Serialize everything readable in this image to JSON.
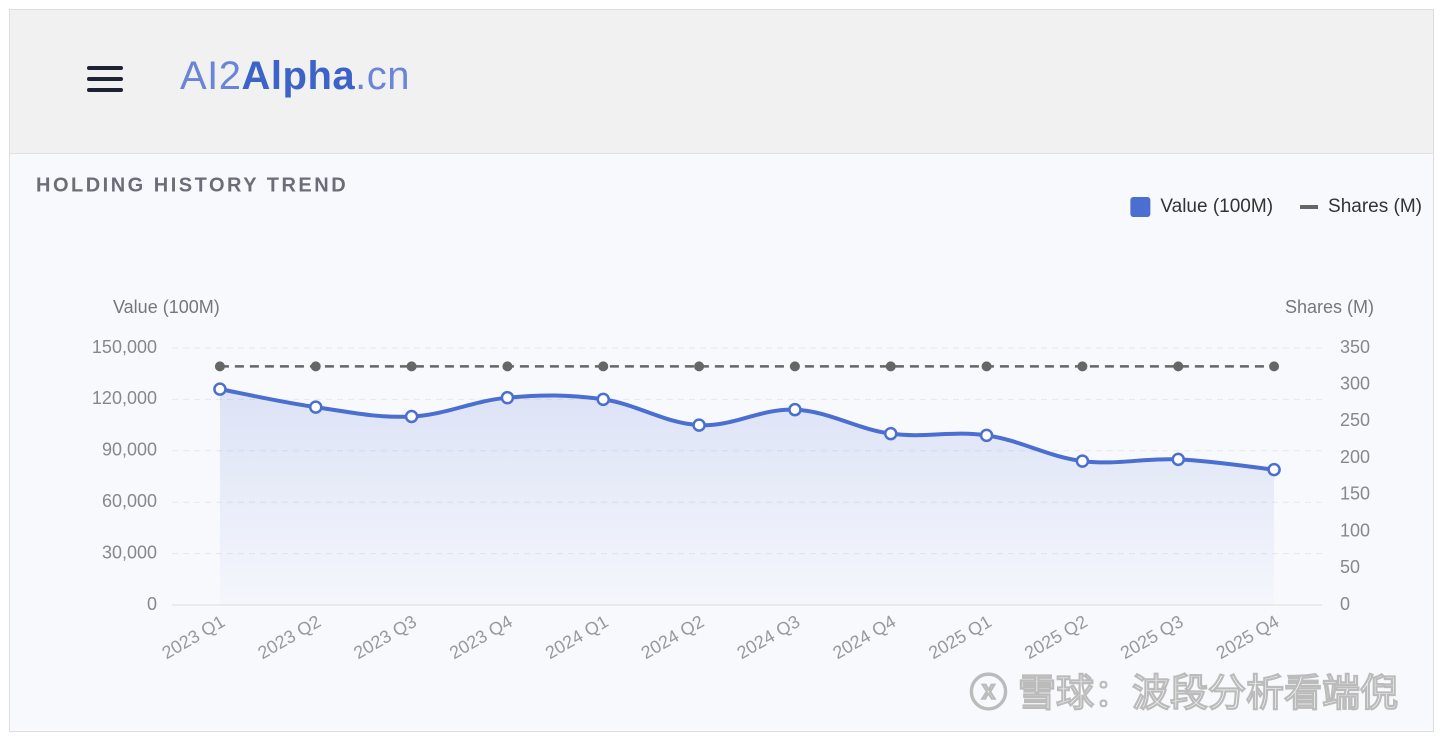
{
  "header": {
    "logo": [
      "AI2",
      "Alpha",
      ".cn"
    ]
  },
  "watermark": "ⓧ 雪球：波段分析看端倪",
  "chart_data": {
    "type": "line",
    "title": "HOLDING HISTORY TREND",
    "y_label": "Value (100M)",
    "y2_label": "Shares (M)",
    "categories": [
      "2023 Q1",
      "2023 Q2",
      "2023 Q3",
      "2023 Q4",
      "2024 Q1",
      "2024 Q2",
      "2024 Q3",
      "2024 Q4",
      "2025 Q1",
      "2025 Q2",
      "2025 Q3",
      "2025 Q4"
    ],
    "series": [
      {
        "name": "Value (100M)",
        "color": "#4a6fd0",
        "values": [
          126000,
          115500,
          110000,
          121000,
          120000,
          105000,
          114000,
          100000,
          99000,
          84000,
          85000,
          79000
        ]
      },
      {
        "name": "Shares (M)",
        "color": "#666666",
        "axis": "y2",
        "values": [
          325,
          325,
          325,
          325,
          325,
          325,
          325,
          325,
          325,
          325,
          325,
          325
        ]
      }
    ],
    "ylim": [
      0,
      150000
    ],
    "yticks": [
      0,
      {
        "value": 30000,
        "label": "30,000"
      },
      {
        "value": 60000,
        "label": "60,000"
      },
      {
        "value": 90000,
        "label": "90,000"
      },
      {
        "value": 120000,
        "label": "120,000"
      },
      {
        "value": 150000,
        "label": "150,000"
      }
    ],
    "y2lim": [
      0,
      350
    ],
    "y2ticks": [
      0,
      50,
      100,
      150,
      200,
      250,
      300,
      350
    ],
    "grid": true,
    "legend": "top-right"
  }
}
